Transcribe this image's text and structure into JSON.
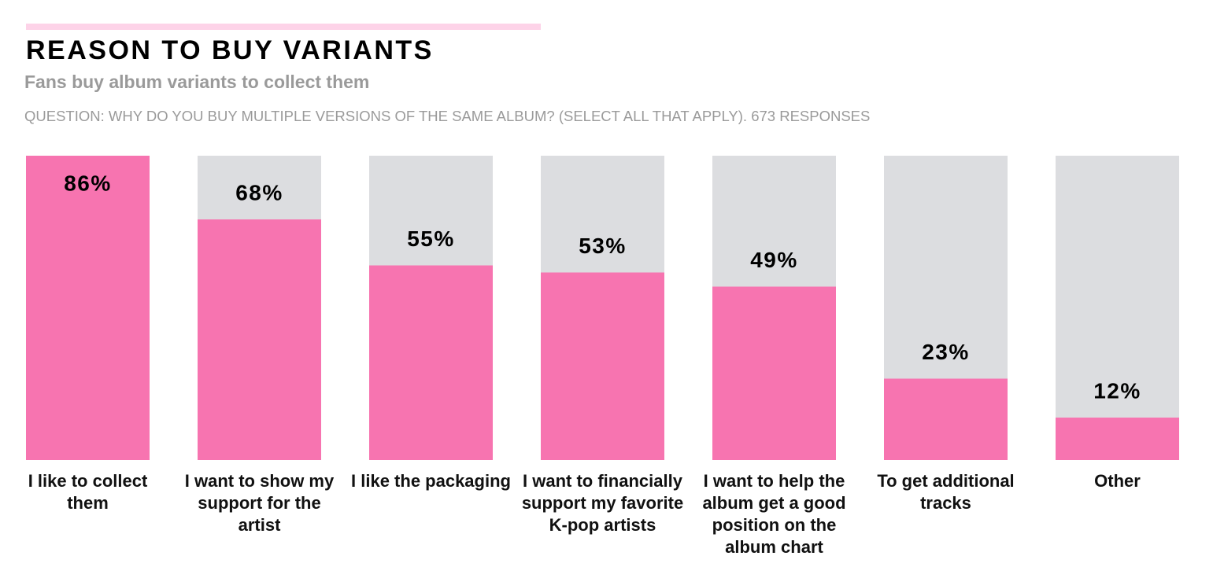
{
  "chart_data": {
    "type": "bar",
    "title": "REASON TO BUY VARIANTS",
    "subtitle": "Fans buy album variants to collect them",
    "note": "QUESTION: WHY DO YOU BUY MULTIPLE VERSIONS OF THE SAME ALBUM? (SELECT ALL THAT APPLY). 673 RESPONSES",
    "categories": [
      "I like to collect them",
      "I want to show my support for the artist",
      "I like the packaging",
      "I want to financially support my favorite K-pop artists",
      "I want to help the album get a good position on the album chart",
      "To get additional tracks",
      "Other"
    ],
    "values": [
      86,
      68,
      55,
      53,
      49,
      23,
      12
    ],
    "value_labels": [
      "86%",
      "68%",
      "55%",
      "53%",
      "49%",
      "23%",
      "12%"
    ],
    "color": "#f774b0",
    "track_color": "#dcdde0",
    "ylim": [
      0,
      86
    ]
  }
}
